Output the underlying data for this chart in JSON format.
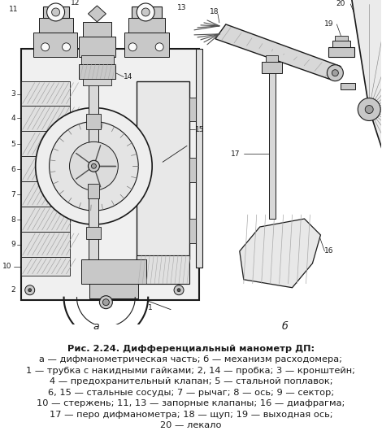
{
  "background_color": "#f5f5f0",
  "fig_width": 4.7,
  "fig_height": 5.46,
  "dpi": 100,
  "caption_bold_part": "Рис. 2.24.",
  "caption_normal_part": " Дифференциальный манометр ДП:",
  "caption_lines": [
    "а — дифманометрическая часть; б — механизм расходомера;",
    "1 — трубка с накидными гайками; 2, 14 — пробка; 3 — кронштейн;",
    "4 — предохранительный клапан; 5 — стальной поплавок;",
    "6, 15 — стальные сосуды; 7 — рычаг; 8 — ось; 9 — сектор;",
    "10 — стержень; 11, 13 — запорные клапаны; 16 — диафрагма;",
    "17 — перо дифманометра; 18 — щуп; 19 — выходная ось;",
    "20 — лекало"
  ],
  "label_a": "а",
  "label_b": "б",
  "font_size_caption": 8.2,
  "font_size_labels": 9.0,
  "ink_color": "#1a1a1a",
  "light_gray": "#c8c8c8",
  "mid_gray": "#a0a0a0",
  "dark_gray": "#505050",
  "hatch_color": "#888888",
  "bg_white": "#fafafa"
}
